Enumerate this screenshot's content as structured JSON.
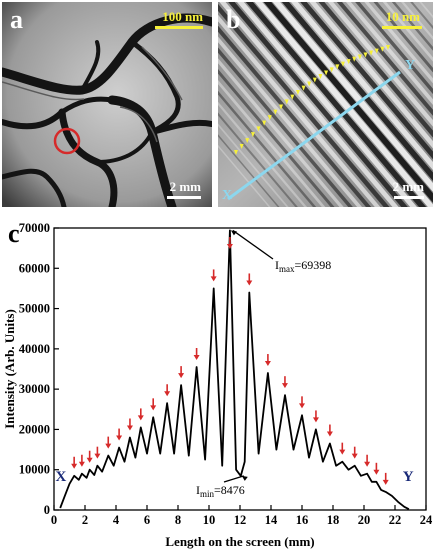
{
  "panels": {
    "a": {
      "label": "a",
      "scale_top": "100 nm",
      "scale_bottom": "2 mm"
    },
    "b": {
      "label": "b",
      "scale_top": "10 nm",
      "scale_bottom": "2 mm",
      "line_start": "X",
      "line_end": "Y"
    },
    "c": {
      "label": "c"
    }
  },
  "colors": {
    "scale_yellow": "#f6f03a",
    "marker_red": "#d62a2a",
    "line_cyan": "#8cd7ee",
    "endpoint_navy": "#1a2a78"
  },
  "chart_data": {
    "type": "line",
    "xlabel": "Length on the screen (mm)",
    "ylabel": "Intensity (Arb. Units)",
    "xlim": [
      0,
      24
    ],
    "ylim": [
      0,
      70000
    ],
    "xticks": [
      "0",
      "2",
      "4",
      "6",
      "8",
      "10",
      "12",
      "14",
      "16",
      "18",
      "20",
      "22",
      "24"
    ],
    "yticks": [
      "0",
      "10000",
      "20000",
      "30000",
      "40000",
      "50000",
      "60000",
      "70000"
    ],
    "endpoint_labels": {
      "start": "X",
      "end": "Y"
    },
    "annotations": {
      "imax": {
        "symbol": "I",
        "subscript": "max",
        "value": "=69398",
        "x": 11.35,
        "y": 69398
      },
      "imin": {
        "symbol": "I",
        "subscript": "min",
        "value": "=8476",
        "x": 12.05,
        "y": 8476
      }
    },
    "peak_markers_x": [
      1.3,
      1.8,
      2.3,
      2.8,
      3.5,
      4.2,
      4.9,
      5.6,
      6.4,
      7.3,
      8.2,
      9.2,
      10.3,
      11.35,
      12.6,
      13.8,
      14.9,
      16.0,
      16.9,
      17.8,
      18.6,
      19.4,
      20.2,
      20.8,
      21.4
    ],
    "series": [
      {
        "values": [
          [
            0.4,
            500
          ],
          [
            0.7,
            3500
          ],
          [
            1.0,
            6500
          ],
          [
            1.3,
            8500
          ],
          [
            1.6,
            7500
          ],
          [
            1.8,
            9000
          ],
          [
            2.1,
            8000
          ],
          [
            2.3,
            10000
          ],
          [
            2.6,
            8700
          ],
          [
            2.8,
            11000
          ],
          [
            3.1,
            9500
          ],
          [
            3.5,
            13500
          ],
          [
            3.85,
            11000
          ],
          [
            4.2,
            15500
          ],
          [
            4.55,
            12000
          ],
          [
            4.9,
            18000
          ],
          [
            5.25,
            13000
          ],
          [
            5.6,
            20500
          ],
          [
            6.0,
            14000
          ],
          [
            6.4,
            23000
          ],
          [
            6.85,
            14000
          ],
          [
            7.3,
            26500
          ],
          [
            7.75,
            14000
          ],
          [
            8.2,
            31000
          ],
          [
            8.7,
            13500
          ],
          [
            9.2,
            35500
          ],
          [
            9.75,
            12500
          ],
          [
            10.3,
            55000
          ],
          [
            10.85,
            11000
          ],
          [
            11.35,
            69398
          ],
          [
            11.75,
            10000
          ],
          [
            12.05,
            8476
          ],
          [
            12.3,
            12000
          ],
          [
            12.6,
            54000
          ],
          [
            13.2,
            14000
          ],
          [
            13.8,
            34000
          ],
          [
            14.35,
            15000
          ],
          [
            14.9,
            28500
          ],
          [
            15.45,
            15000
          ],
          [
            16.0,
            23500
          ],
          [
            16.45,
            13000
          ],
          [
            16.9,
            20000
          ],
          [
            17.35,
            12000
          ],
          [
            17.8,
            16500
          ],
          [
            18.2,
            11000
          ],
          [
            18.6,
            12000
          ],
          [
            19.0,
            10000
          ],
          [
            19.4,
            11000
          ],
          [
            19.8,
            8500
          ],
          [
            20.2,
            9000
          ],
          [
            20.5,
            7000
          ],
          [
            20.8,
            7000
          ],
          [
            21.1,
            5000
          ],
          [
            21.4,
            4500
          ],
          [
            21.8,
            3500
          ],
          [
            22.2,
            2000
          ],
          [
            22.6,
            800
          ],
          [
            22.9,
            200
          ]
        ]
      }
    ]
  }
}
